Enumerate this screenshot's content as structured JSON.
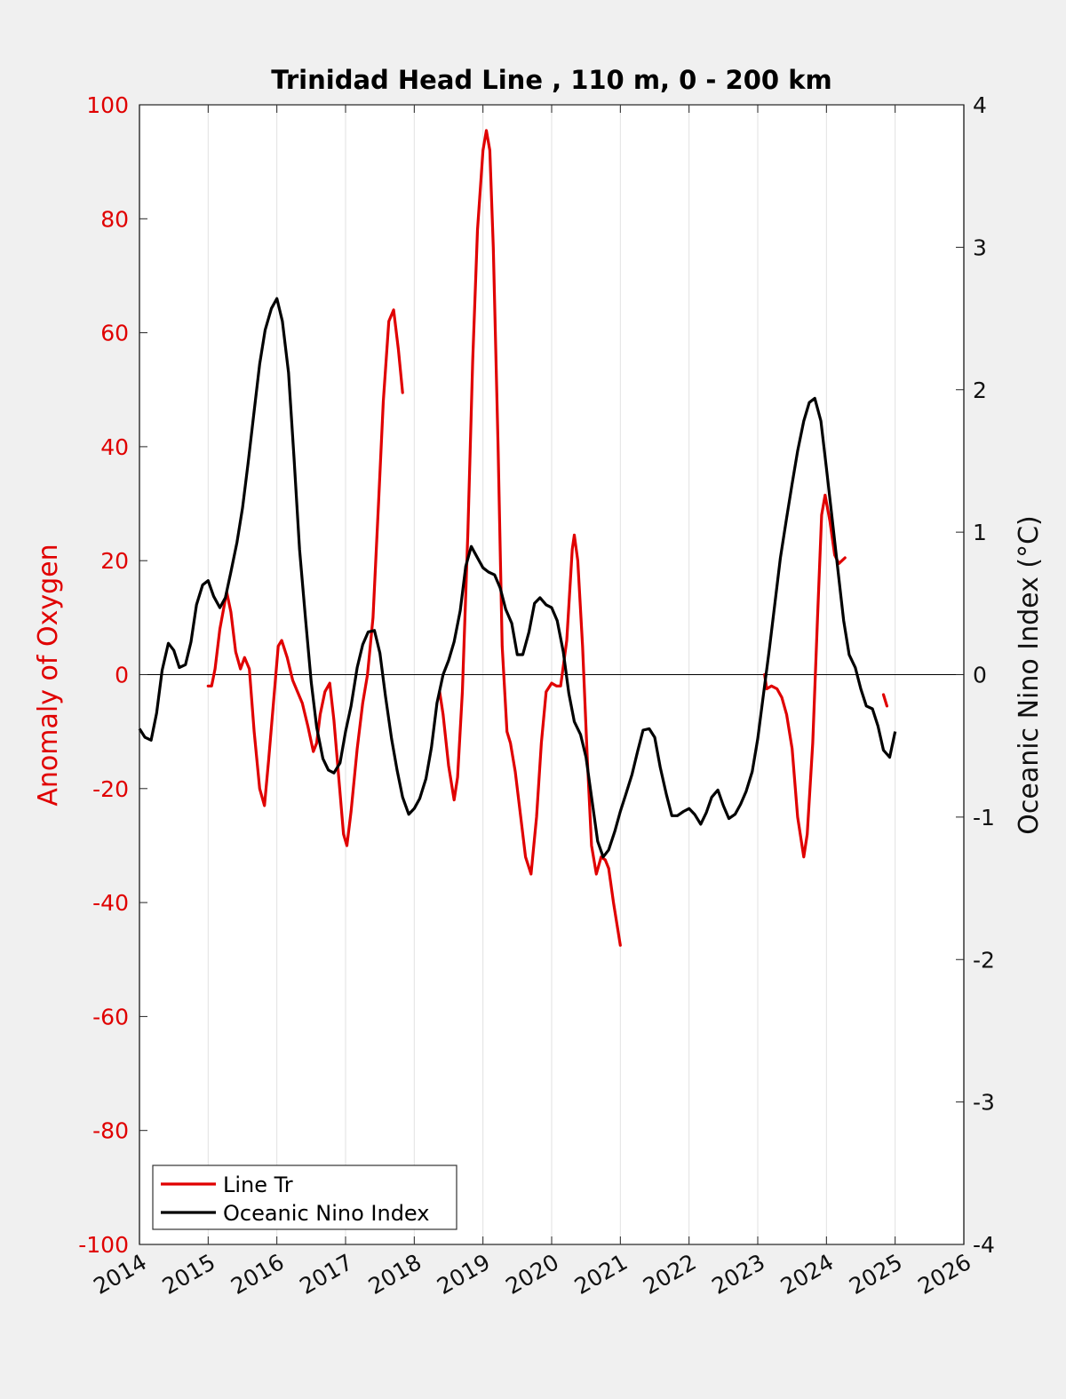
{
  "chart_data": {
    "type": "line",
    "title": "Trinidad Head Line , 110 m, 0 - 200 km",
    "ylabel_left": "Anomaly of Oxygen",
    "ylabel_right": "Oceanic Nino Index (°C)",
    "xlim": [
      2014,
      2026
    ],
    "ylim_left": [
      -100,
      100
    ],
    "ylim_right": [
      -4,
      4
    ],
    "x_ticks": [
      "2014",
      "2015",
      "2016",
      "2017",
      "2018",
      "2019",
      "2020",
      "2021",
      "2022",
      "2023",
      "2024",
      "2025",
      "2026"
    ],
    "y_ticks_left": [
      "100",
      "80",
      "60",
      "40",
      "20",
      "0",
      "-20",
      "-40",
      "-60",
      "-80",
      "-100"
    ],
    "y_ticks_right": [
      "4",
      "3",
      "2",
      "1",
      "0",
      "-1",
      "-2",
      "-3",
      "-4"
    ],
    "grid": "vertical",
    "zero_line": true,
    "legend": {
      "placement": "bottom-left",
      "entries": [
        "Line Tr",
        "Oceanic Nino Index"
      ]
    },
    "colors": {
      "line_tr": "#e00000",
      "oni": "#000000",
      "left_axis": "#e00000"
    },
    "series": [
      {
        "name": "Line Tr",
        "axis": "left",
        "segments": [
          [
            [
              2015.0,
              -2
            ],
            [
              2015.05,
              -2
            ],
            [
              2015.1,
              1
            ],
            [
              2015.17,
              8
            ],
            [
              2015.27,
              14.5
            ],
            [
              2015.33,
              11
            ],
            [
              2015.4,
              4
            ],
            [
              2015.47,
              1
            ],
            [
              2015.53,
              3
            ],
            [
              2015.6,
              1
            ],
            [
              2015.67,
              -10
            ],
            [
              2015.75,
              -20
            ],
            [
              2015.82,
              -23
            ],
            [
              2015.88,
              -15
            ],
            [
              2015.95,
              -5
            ],
            [
              2016.02,
              5
            ],
            [
              2016.07,
              6
            ],
            [
              2016.15,
              3
            ],
            [
              2016.23,
              -1
            ],
            [
              2016.3,
              -3
            ],
            [
              2016.37,
              -5
            ],
            [
              2016.45,
              -9
            ],
            [
              2016.53,
              -13.5
            ],
            [
              2016.58,
              -12
            ],
            [
              2016.63,
              -7
            ],
            [
              2016.7,
              -3
            ],
            [
              2016.77,
              -1.5
            ],
            [
              2016.83,
              -8
            ],
            [
              2016.9,
              -18
            ],
            [
              2016.97,
              -28
            ],
            [
              2017.02,
              -30
            ],
            [
              2017.08,
              -24
            ],
            [
              2017.17,
              -13
            ],
            [
              2017.25,
              -5
            ],
            [
              2017.32,
              0
            ],
            [
              2017.4,
              10
            ],
            [
              2017.48,
              30
            ],
            [
              2017.55,
              48
            ],
            [
              2017.63,
              62
            ],
            [
              2017.7,
              64
            ],
            [
              2017.77,
              57
            ],
            [
              2017.83,
              49.5
            ]
          ],
          [
            [
              2018.37,
              -3
            ],
            [
              2018.42,
              -7
            ],
            [
              2018.5,
              -16
            ],
            [
              2018.58,
              -22
            ],
            [
              2018.63,
              -18
            ],
            [
              2018.7,
              -3
            ],
            [
              2018.78,
              25
            ],
            [
              2018.85,
              55
            ],
            [
              2018.92,
              78
            ],
            [
              2019.0,
              92
            ],
            [
              2019.05,
              95.5
            ],
            [
              2019.1,
              92
            ],
            [
              2019.15,
              75
            ],
            [
              2019.22,
              40
            ],
            [
              2019.28,
              5
            ],
            [
              2019.35,
              -10
            ],
            [
              2019.4,
              -12
            ],
            [
              2019.47,
              -17
            ],
            [
              2019.55,
              -25
            ],
            [
              2019.62,
              -32
            ],
            [
              2019.7,
              -35
            ],
            [
              2019.78,
              -25
            ],
            [
              2019.85,
              -12
            ],
            [
              2019.92,
              -3
            ],
            [
              2020.0,
              -1.5
            ],
            [
              2020.07,
              -2
            ],
            [
              2020.13,
              -2
            ],
            [
              2020.22,
              6
            ],
            [
              2020.3,
              22
            ],
            [
              2020.33,
              24.5
            ],
            [
              2020.38,
              20
            ],
            [
              2020.45,
              5
            ],
            [
              2020.52,
              -15
            ],
            [
              2020.58,
              -30
            ],
            [
              2020.65,
              -35
            ],
            [
              2020.72,
              -32
            ],
            [
              2020.78,
              -32.5
            ],
            [
              2020.83,
              -34
            ],
            [
              2020.9,
              -40
            ],
            [
              2021.0,
              -47.5
            ]
          ],
          [
            [
              2023.1,
              0
            ],
            [
              2023.13,
              -2.5
            ],
            [
              2023.2,
              -2
            ],
            [
              2023.28,
              -2.5
            ],
            [
              2023.35,
              -4
            ],
            [
              2023.42,
              -7
            ],
            [
              2023.5,
              -13
            ],
            [
              2023.58,
              -25
            ],
            [
              2023.67,
              -32
            ],
            [
              2023.72,
              -28
            ],
            [
              2023.8,
              -12
            ],
            [
              2023.87,
              10
            ],
            [
              2023.93,
              28
            ],
            [
              2023.98,
              31.5
            ],
            [
              2024.05,
              27
            ],
            [
              2024.12,
              21
            ],
            [
              2024.18,
              19.5
            ],
            [
              2024.27,
              20.5
            ]
          ],
          [
            [
              2024.83,
              -3.5
            ],
            [
              2024.88,
              -5.5
            ]
          ]
        ]
      },
      {
        "name": "Oceanic Nino Index",
        "axis": "right",
        "points": [
          [
            2014.0,
            -0.38
          ],
          [
            2014.08,
            -0.44
          ],
          [
            2014.17,
            -0.46
          ],
          [
            2014.25,
            -0.27
          ],
          [
            2014.33,
            0.03
          ],
          [
            2014.42,
            0.22
          ],
          [
            2014.5,
            0.17
          ],
          [
            2014.58,
            0.05
          ],
          [
            2014.67,
            0.07
          ],
          [
            2014.75,
            0.23
          ],
          [
            2014.83,
            0.49
          ],
          [
            2014.92,
            0.63
          ],
          [
            2015.0,
            0.66
          ],
          [
            2015.08,
            0.55
          ],
          [
            2015.17,
            0.47
          ],
          [
            2015.25,
            0.54
          ],
          [
            2015.33,
            0.72
          ],
          [
            2015.42,
            0.93
          ],
          [
            2015.5,
            1.17
          ],
          [
            2015.58,
            1.48
          ],
          [
            2015.67,
            1.85
          ],
          [
            2015.75,
            2.18
          ],
          [
            2015.83,
            2.42
          ],
          [
            2015.92,
            2.57
          ],
          [
            2016.0,
            2.64
          ],
          [
            2016.08,
            2.48
          ],
          [
            2016.17,
            2.12
          ],
          [
            2016.25,
            1.52
          ],
          [
            2016.33,
            0.88
          ],
          [
            2016.42,
            0.38
          ],
          [
            2016.5,
            -0.05
          ],
          [
            2016.58,
            -0.37
          ],
          [
            2016.67,
            -0.59
          ],
          [
            2016.75,
            -0.67
          ],
          [
            2016.83,
            -0.69
          ],
          [
            2016.92,
            -0.62
          ],
          [
            2017.0,
            -0.4
          ],
          [
            2017.08,
            -0.22
          ],
          [
            2017.17,
            0.05
          ],
          [
            2017.25,
            0.21
          ],
          [
            2017.33,
            0.3
          ],
          [
            2017.42,
            0.31
          ],
          [
            2017.5,
            0.15
          ],
          [
            2017.58,
            -0.15
          ],
          [
            2017.67,
            -0.45
          ],
          [
            2017.75,
            -0.67
          ],
          [
            2017.83,
            -0.86
          ],
          [
            2017.92,
            -0.98
          ],
          [
            2018.0,
            -0.94
          ],
          [
            2018.08,
            -0.87
          ],
          [
            2018.17,
            -0.73
          ],
          [
            2018.25,
            -0.51
          ],
          [
            2018.33,
            -0.2
          ],
          [
            2018.42,
            0.0
          ],
          [
            2018.5,
            0.1
          ],
          [
            2018.58,
            0.23
          ],
          [
            2018.67,
            0.45
          ],
          [
            2018.75,
            0.76
          ],
          [
            2018.83,
            0.9
          ],
          [
            2018.92,
            0.82
          ],
          [
            2019.0,
            0.75
          ],
          [
            2019.08,
            0.72
          ],
          [
            2019.17,
            0.7
          ],
          [
            2019.25,
            0.61
          ],
          [
            2019.33,
            0.46
          ],
          [
            2019.42,
            0.36
          ],
          [
            2019.5,
            0.14
          ],
          [
            2019.58,
            0.14
          ],
          [
            2019.67,
            0.3
          ],
          [
            2019.75,
            0.5
          ],
          [
            2019.83,
            0.54
          ],
          [
            2019.92,
            0.49
          ],
          [
            2020.0,
            0.47
          ],
          [
            2020.08,
            0.38
          ],
          [
            2020.17,
            0.16
          ],
          [
            2020.25,
            -0.13
          ],
          [
            2020.33,
            -0.33
          ],
          [
            2020.42,
            -0.42
          ],
          [
            2020.5,
            -0.58
          ],
          [
            2020.58,
            -0.86
          ],
          [
            2020.67,
            -1.17
          ],
          [
            2020.75,
            -1.28
          ],
          [
            2020.83,
            -1.23
          ],
          [
            2020.92,
            -1.1
          ],
          [
            2021.0,
            -0.96
          ],
          [
            2021.08,
            -0.84
          ],
          [
            2021.17,
            -0.7
          ],
          [
            2021.25,
            -0.54
          ],
          [
            2021.33,
            -0.39
          ],
          [
            2021.42,
            -0.38
          ],
          [
            2021.5,
            -0.44
          ],
          [
            2021.58,
            -0.65
          ],
          [
            2021.67,
            -0.84
          ],
          [
            2021.75,
            -0.99
          ],
          [
            2021.83,
            -0.99
          ],
          [
            2021.92,
            -0.96
          ],
          [
            2022.0,
            -0.94
          ],
          [
            2022.08,
            -0.98
          ],
          [
            2022.17,
            -1.05
          ],
          [
            2022.25,
            -0.97
          ],
          [
            2022.33,
            -0.86
          ],
          [
            2022.42,
            -0.81
          ],
          [
            2022.5,
            -0.92
          ],
          [
            2022.58,
            -1.01
          ],
          [
            2022.67,
            -0.98
          ],
          [
            2022.75,
            -0.91
          ],
          [
            2022.83,
            -0.82
          ],
          [
            2022.92,
            -0.68
          ],
          [
            2023.0,
            -0.45
          ],
          [
            2023.08,
            -0.15
          ],
          [
            2023.17,
            0.18
          ],
          [
            2023.25,
            0.5
          ],
          [
            2023.33,
            0.82
          ],
          [
            2023.42,
            1.1
          ],
          [
            2023.5,
            1.34
          ],
          [
            2023.58,
            1.57
          ],
          [
            2023.67,
            1.78
          ],
          [
            2023.75,
            1.91
          ],
          [
            2023.83,
            1.94
          ],
          [
            2023.92,
            1.78
          ],
          [
            2024.0,
            1.45
          ],
          [
            2024.08,
            1.11
          ],
          [
            2024.17,
            0.72
          ],
          [
            2024.25,
            0.38
          ],
          [
            2024.33,
            0.14
          ],
          [
            2024.42,
            0.05
          ],
          [
            2024.5,
            -0.1
          ],
          [
            2024.58,
            -0.22
          ],
          [
            2024.67,
            -0.24
          ],
          [
            2024.75,
            -0.36
          ],
          [
            2024.83,
            -0.53
          ],
          [
            2024.92,
            -0.58
          ],
          [
            2025.0,
            -0.4
          ]
        ]
      }
    ]
  }
}
